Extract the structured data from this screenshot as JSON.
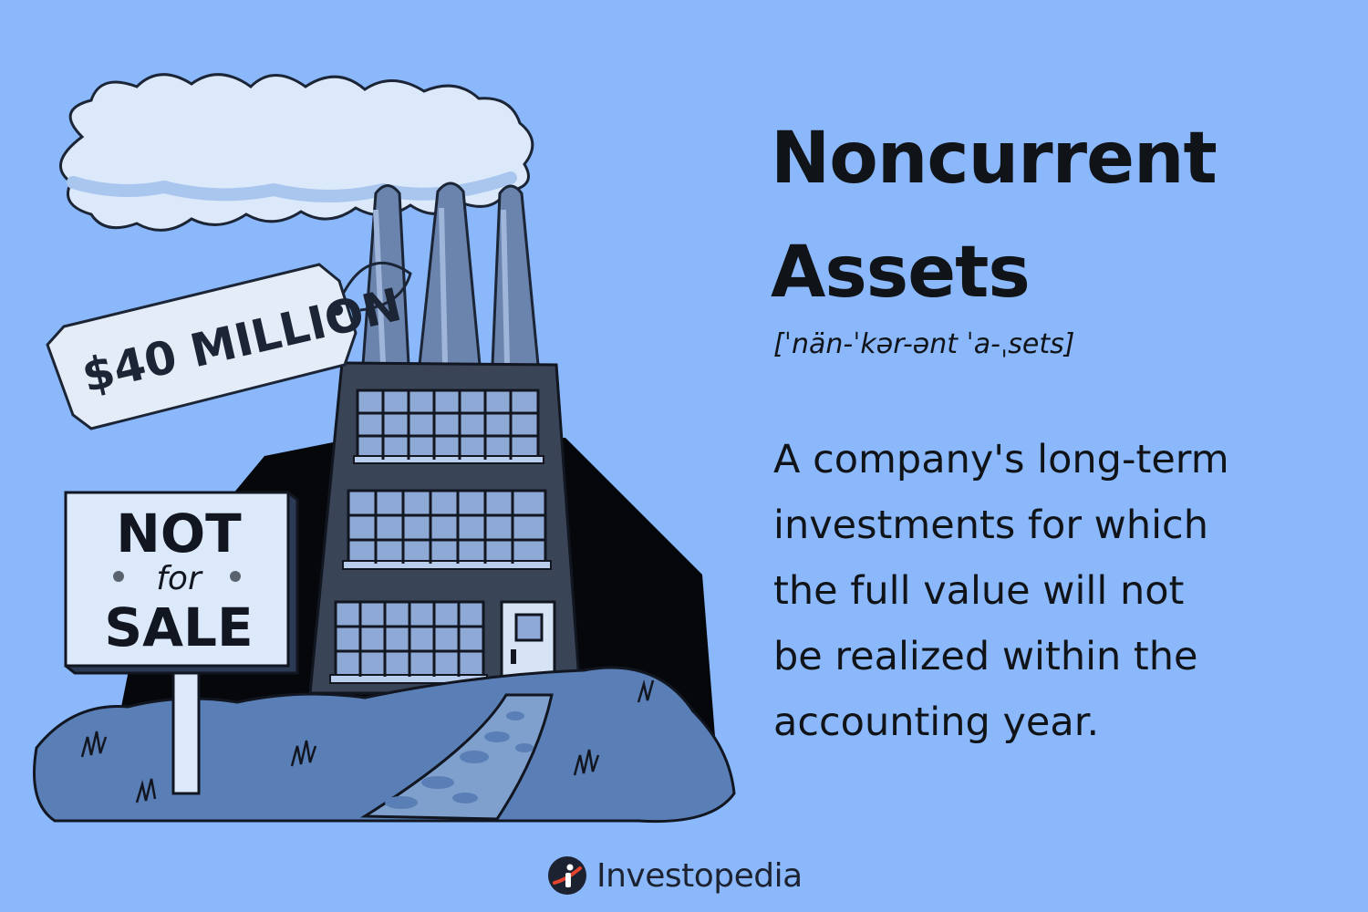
{
  "title_lines": [
    "Noncurrent",
    "Assets"
  ],
  "pronunciation": "[ˈnän-ˈkər-ənt ˈa-ˌsets]",
  "definition_lines": [
    "A company's long-term",
    "investments for which",
    "the full value will not",
    "be realized within the",
    "accounting year."
  ],
  "price_tag": "$40 MILLION",
  "sign": {
    "line1": "NOT",
    "line2": "for",
    "line3": "SALE"
  },
  "brand": "Investopedia",
  "colors": {
    "background": "#8ab8fb",
    "text": "#101317",
    "building": "#3a4457",
    "ground": "#5a7fb6",
    "cloud": "#dbe9fb"
  },
  "icons": [
    "factory-illustration",
    "cloud-smoke",
    "price-tag",
    "not-for-sale-sign",
    "investopedia-logo-icon"
  ]
}
